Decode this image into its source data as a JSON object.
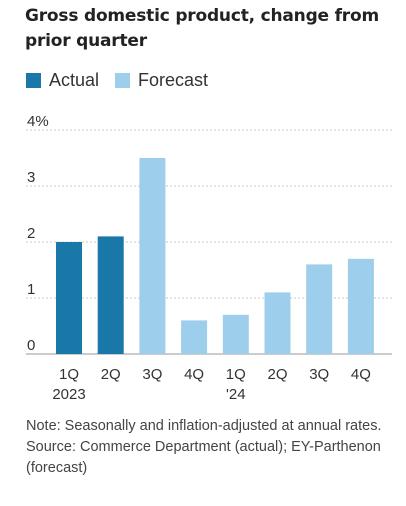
{
  "title": "Gross domestic product, change from prior quarter",
  "legend": {
    "actual_label": "Actual",
    "forecast_label": "Forecast"
  },
  "colors": {
    "actual": "#1a78a8",
    "forecast": "#9dcfec",
    "grid": "#c8c8c8",
    "axis": "#999999"
  },
  "note": "Note: Seasonally and inflation-adjusted at annual rates.",
  "source": "Source: Commerce Department (actual); EY-Parthenon (forecast)",
  "chart_data": {
    "type": "bar",
    "title": "Gross domestic product, change from prior quarter",
    "xlabel": "",
    "ylabel": "",
    "ylim": [
      0,
      4
    ],
    "yticks": [
      {
        "value": 0,
        "label": "0"
      },
      {
        "value": 1,
        "label": "1"
      },
      {
        "value": 2,
        "label": "2"
      },
      {
        "value": 3,
        "label": "3"
      },
      {
        "value": 4,
        "label": "4%"
      }
    ],
    "grid": true,
    "legend_position": "top-left",
    "categories": [
      {
        "line1": "1Q",
        "line2": "2023"
      },
      {
        "line1": "2Q",
        "line2": ""
      },
      {
        "line1": "3Q",
        "line2": ""
      },
      {
        "line1": "4Q",
        "line2": ""
      },
      {
        "line1": "1Q",
        "line2": "'24"
      },
      {
        "line1": "2Q",
        "line2": ""
      },
      {
        "line1": "3Q",
        "line2": ""
      },
      {
        "line1": "4Q",
        "line2": ""
      }
    ],
    "series": [
      {
        "name": "Actual",
        "values": [
          2.0,
          2.1,
          null,
          null,
          null,
          null,
          null,
          null
        ]
      },
      {
        "name": "Forecast",
        "values": [
          null,
          null,
          3.5,
          0.6,
          0.7,
          1.1,
          1.6,
          1.7
        ]
      }
    ]
  }
}
